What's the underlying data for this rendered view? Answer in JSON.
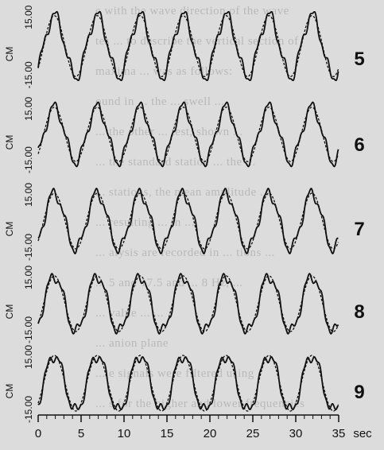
{
  "chart_data": {
    "type": "line",
    "xlabel": "sec",
    "x_range": [
      0,
      35
    ],
    "x_ticks": [
      0,
      5,
      10,
      15,
      20,
      25,
      30,
      35
    ],
    "x_tick_labels": [
      "0",
      "5",
      "10",
      "15",
      "20",
      "25",
      "30",
      "35"
    ],
    "panels": [
      {
        "label": "5",
        "ylabel": "CM",
        "y_ticks": [
          "-15.00",
          "15.00"
        ],
        "ylim": [
          -18,
          18
        ],
        "amplitude": 15,
        "period_sec": 5.0,
        "series": [
          {
            "style": "solid"
          },
          {
            "style": "dashed"
          }
        ]
      },
      {
        "label": "6",
        "ylabel": "CM",
        "y_ticks": [
          "-15.00",
          "15.00"
        ],
        "ylim": [
          -18,
          18
        ],
        "amplitude": 15,
        "period_sec": 5.0,
        "series": [
          {
            "style": "solid"
          },
          {
            "style": "dashed"
          }
        ]
      },
      {
        "label": "7",
        "ylabel": "CM",
        "y_ticks": [
          "-15.00",
          "15.00"
        ],
        "ylim": [
          -18,
          18
        ],
        "amplitude": 15,
        "period_sec": 5.0,
        "series": [
          {
            "style": "solid"
          },
          {
            "style": "dashed"
          }
        ]
      },
      {
        "label": "8",
        "ylabel": "CM",
        "y_ticks": [
          "-15.00",
          "15.00"
        ],
        "ylim": [
          -18,
          18
        ],
        "amplitude": 15,
        "period_sec": 5.0,
        "series": [
          {
            "style": "solid"
          },
          {
            "style": "dashed"
          }
        ]
      },
      {
        "label": "9",
        "ylabel": "CM",
        "y_ticks": [
          "-15.00",
          "15.00"
        ],
        "ylim": [
          -18,
          18
        ],
        "amplitude": 15,
        "period_sec": 5.0,
        "series": [
          {
            "style": "solid"
          },
          {
            "style": "dashed"
          }
        ]
      }
    ],
    "grid": false,
    "colors": {
      "line": "#111111",
      "background": "#dcdcdc",
      "bleed_text": "#b9b9b9"
    }
  },
  "background_text": [
    "e with the wave direction of the wave",
    "tes ... to describe the vertical section of",
    "maxima ... was as follows:",
    "ound in ... the ... swell ...",
    "... the other ... test, shown ...",
    "... the standard station ... the ...",
    "... stations, the mean amplitude ...",
    "... resulting ... in ...",
    "... alysis are recorded in ... tions ...",
    "... 5 and 17.5 and ... 8 Hz, ...",
    "... value ... ...",
    "... anion plane",
    "... e signals were filtered using",
    "... s for the higher and lower frequencies"
  ]
}
